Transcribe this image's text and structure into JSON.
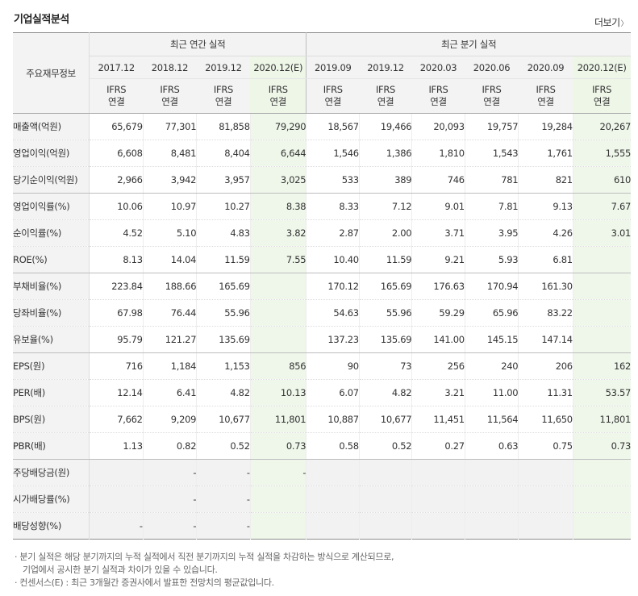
{
  "section_title": "기업실적분석",
  "more_label": "더보기",
  "corner_label": "주요재무정보",
  "group_annual": "최근 연간 실적",
  "group_quarter": "최근 분기 실적",
  "periods": [
    "2017.12",
    "2018.12",
    "2019.12",
    "2020.12(E)",
    "2019.09",
    "2019.12",
    "2020.03",
    "2020.06",
    "2020.09",
    "2020.12(E)"
  ],
  "ifrs_line1": "IFRS",
  "ifrs_line2": "연결",
  "rows": [
    {
      "label": "매출액(억원)",
      "values": [
        "65,679",
        "77,301",
        "81,858",
        "79,290",
        "18,567",
        "19,466",
        "20,093",
        "19,757",
        "19,284",
        "20,267"
      ]
    },
    {
      "label": "영업이익(억원)",
      "values": [
        "6,608",
        "8,481",
        "8,404",
        "6,644",
        "1,546",
        "1,386",
        "1,810",
        "1,543",
        "1,761",
        "1,555"
      ]
    },
    {
      "label": "당기순이익(억원)",
      "values": [
        "2,966",
        "3,942",
        "3,957",
        "3,025",
        "533",
        "389",
        "746",
        "781",
        "821",
        "610"
      ]
    },
    {
      "label": "영업이익률(%)",
      "values": [
        "10.06",
        "10.97",
        "10.27",
        "8.38",
        "8.33",
        "7.12",
        "9.01",
        "7.81",
        "9.13",
        "7.67"
      ]
    },
    {
      "label": "순이익률(%)",
      "values": [
        "4.52",
        "5.10",
        "4.83",
        "3.82",
        "2.87",
        "2.00",
        "3.71",
        "3.95",
        "4.26",
        "3.01"
      ]
    },
    {
      "label": "ROE(%)",
      "values": [
        "8.13",
        "14.04",
        "11.59",
        "7.55",
        "10.40",
        "11.59",
        "9.21",
        "5.93",
        "6.81",
        ""
      ]
    },
    {
      "label": "부채비율(%)",
      "values": [
        "223.84",
        "188.66",
        "165.69",
        "",
        "170.12",
        "165.69",
        "176.63",
        "170.94",
        "161.30",
        ""
      ]
    },
    {
      "label": "당좌비율(%)",
      "values": [
        "67.98",
        "76.44",
        "55.96",
        "",
        "54.63",
        "55.96",
        "59.29",
        "65.96",
        "83.22",
        ""
      ]
    },
    {
      "label": "유보율(%)",
      "values": [
        "95.79",
        "121.27",
        "135.69",
        "",
        "137.23",
        "135.69",
        "141.00",
        "145.15",
        "147.14",
        ""
      ]
    },
    {
      "label": "EPS(원)",
      "values": [
        "716",
        "1,184",
        "1,153",
        "856",
        "90",
        "73",
        "256",
        "240",
        "206",
        "162"
      ]
    },
    {
      "label": "PER(배)",
      "values": [
        "12.14",
        "6.41",
        "4.82",
        "10.13",
        "6.07",
        "4.82",
        "3.21",
        "11.00",
        "11.31",
        "53.57"
      ]
    },
    {
      "label": "BPS(원)",
      "values": [
        "7,662",
        "9,209",
        "10,677",
        "11,801",
        "10,887",
        "10,677",
        "11,451",
        "11,564",
        "11,650",
        "11,801"
      ]
    },
    {
      "label": "PBR(배)",
      "values": [
        "1.13",
        "0.82",
        "0.52",
        "0.73",
        "0.58",
        "0.52",
        "0.27",
        "0.63",
        "0.75",
        "0.73"
      ]
    },
    {
      "label": "주당배당금(원)",
      "values": [
        "",
        "-",
        "-",
        "-",
        "",
        "",
        "",
        "",
        "",
        ""
      ]
    },
    {
      "label": "시가배당률(%)",
      "values": [
        "",
        "-",
        "-",
        "",
        "",
        "",
        "",
        "",
        "",
        ""
      ]
    },
    {
      "label": "배당성향(%)",
      "values": [
        "-",
        "-",
        "-",
        "",
        "",
        "",
        "",
        "",
        "",
        ""
      ]
    }
  ],
  "notes": [
    "분기 실적은 해당 분기까지의 누적 실적에서 직전 분기까지의 누적 실적을 차감하는 방식으로 계산되므로,",
    "기업에서 공시한 분기 실적과 차이가 있을 수 있습니다.",
    "컨센서스(E) : 최근 3개월간 증권사에서 발표한 전망치의 평균값입니다."
  ],
  "colors": {
    "ifrs": "#f26522",
    "estimate_bg": "#eff7ea",
    "header_bg": "#f3f3f3",
    "estimate_e": "#3aa63a"
  }
}
